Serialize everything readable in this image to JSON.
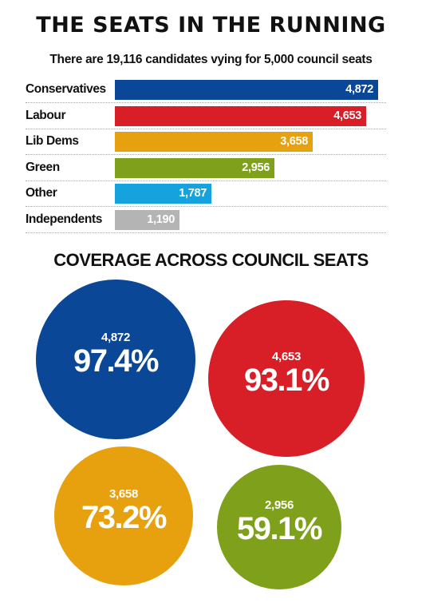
{
  "title": "THE SEATS IN THE RUNNING",
  "subtitle": "There are 19,116 candidates vying for 5,000 council seats",
  "section_title": "COVERAGE ACROSS COUNCIL SEATS",
  "chart_data": [
    {
      "type": "bar",
      "orientation": "horizontal",
      "title": "THE SEATS IN THE RUNNING",
      "subtitle": "There are 19,116 candidates vying for 5,000 council seats",
      "categories": [
        "Conservatives",
        "Labour",
        "Lib Dems",
        "Green",
        "Other",
        "Independents"
      ],
      "values": [
        4872,
        4653,
        3658,
        2956,
        1787,
        1190
      ],
      "value_labels": [
        "4,872",
        "4,653",
        "3,658",
        "2,956",
        "1,787",
        "1,190"
      ],
      "colors": [
        "#0a4797",
        "#d81e27",
        "#e8a10e",
        "#7fa01a",
        "#16a2dc",
        "#b4b4b4"
      ],
      "grid": false,
      "legend": "none"
    },
    {
      "type": "proportional-circles",
      "title": "COVERAGE ACROSS COUNCIL SEATS",
      "items": [
        {
          "count_label": "4,872",
          "percent_label": "97.4%",
          "percent": 97.4,
          "color": "#0a4797"
        },
        {
          "count_label": "4,653",
          "percent_label": "93.1%",
          "percent": 93.1,
          "color": "#d81e27"
        },
        {
          "count_label": "3,658",
          "percent_label": "73.2%",
          "percent": 73.2,
          "color": "#e8a10e"
        },
        {
          "count_label": "2,956",
          "percent_label": "59.1%",
          "percent": 59.1,
          "color": "#7fa01a"
        }
      ]
    }
  ]
}
